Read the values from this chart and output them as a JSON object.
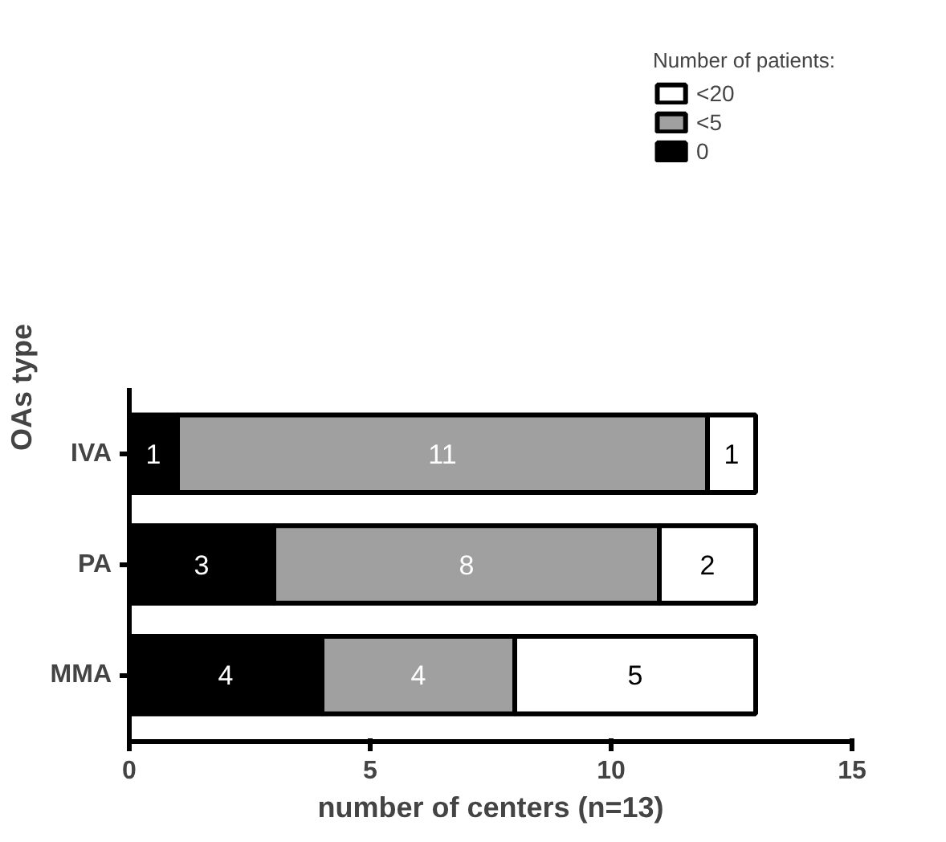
{
  "chart_data": {
    "type": "bar",
    "orientation": "horizontal",
    "stacked": true,
    "xlabel": "number of centers (n=13)",
    "ylabel": "OAs type",
    "legend_title": "Number of patients:",
    "categories": [
      "IVA",
      "PA",
      "MMA"
    ],
    "series": [
      {
        "name": "0",
        "color": "#000000",
        "values": [
          1,
          3,
          4
        ]
      },
      {
        "name": "<5",
        "color": "#a0a0a0",
        "values": [
          11,
          8,
          4
        ]
      },
      {
        "name": "<20",
        "color": "#ffffff",
        "values": [
          1,
          2,
          5
        ]
      }
    ],
    "xlim": [
      0,
      15
    ],
    "xticks": [
      0,
      5,
      10,
      15
    ],
    "data_labels": true,
    "grid": false,
    "legend": "top right"
  }
}
